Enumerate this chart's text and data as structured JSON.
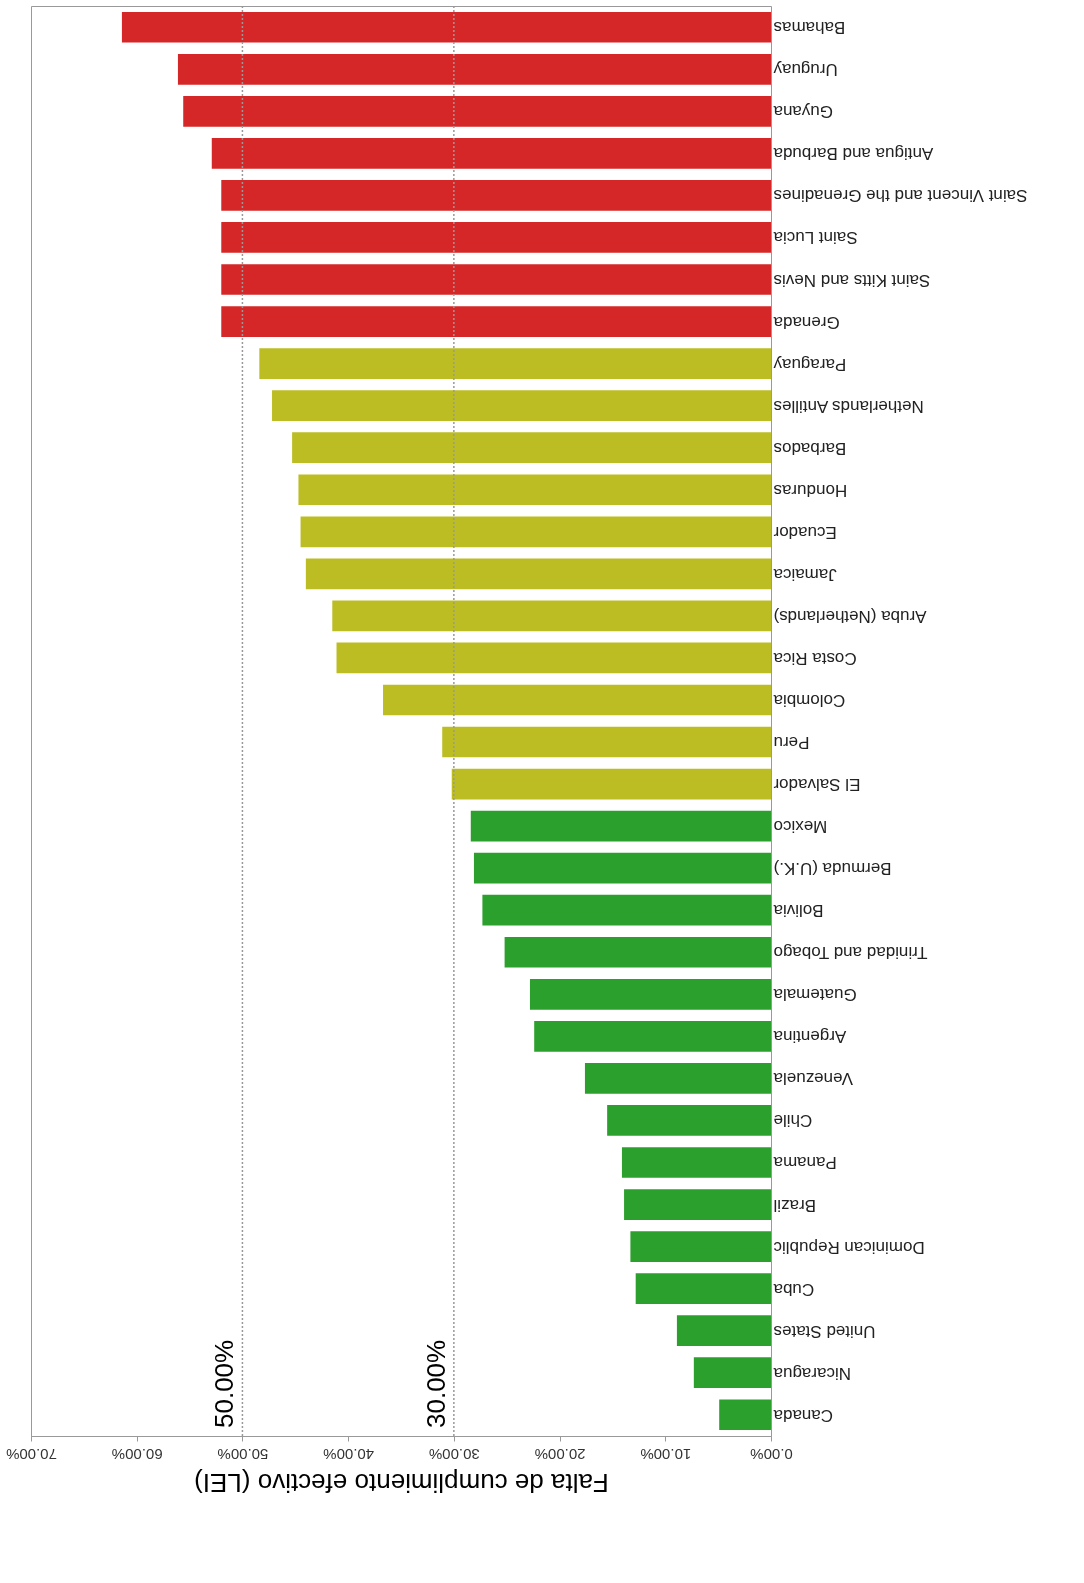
{
  "chart_data": {
    "type": "bar",
    "orientation": "horizontal",
    "xlabel": "Falta de cumplimiento efectivo (LEI)",
    "categories": [
      "Bahamas",
      "Uruguay",
      "Guyana",
      "Antigua and Barbuda",
      "Saint Vincent and the Grenadines",
      "Saint Lucia",
      "Saint Kitts and Nevis",
      "Grenada",
      "Paraguay",
      "Netherlands Antilles",
      "Barbados",
      "Honduras",
      "Ecuador",
      "Jamaica",
      "Aruba (Netherlands)",
      "Costa Rica",
      "Colombia",
      "Peru",
      "El Salvador",
      "Mexico",
      "Bermuda (U.K.)",
      "Bolivia",
      "Trinidad and Tobago",
      "Guatemala",
      "Argentina",
      "Venezuela",
      "Chile",
      "Panama",
      "Brazil",
      "Dominican Republic",
      "Cuba",
      "United States",
      "Nicaragua",
      "Canada"
    ],
    "values": [
      61.4,
      56.1,
      55.6,
      52.9,
      52.0,
      52.0,
      52.0,
      52.0,
      48.4,
      47.2,
      45.3,
      44.7,
      44.5,
      44.0,
      41.5,
      41.1,
      36.7,
      31.1,
      30.2,
      28.4,
      28.1,
      27.3,
      25.2,
      22.8,
      22.4,
      17.6,
      15.5,
      14.1,
      13.9,
      13.3,
      12.8,
      8.9,
      7.3,
      4.9
    ],
    "colors": [
      "#d62728",
      "#d62728",
      "#d62728",
      "#d62728",
      "#d62728",
      "#d62728",
      "#d62728",
      "#d62728",
      "#bcbd22",
      "#bcbd22",
      "#bcbd22",
      "#bcbd22",
      "#bcbd22",
      "#bcbd22",
      "#bcbd22",
      "#bcbd22",
      "#bcbd22",
      "#bcbd22",
      "#bcbd22",
      "#2ca02c",
      "#2ca02c",
      "#2ca02c",
      "#2ca02c",
      "#2ca02c",
      "#2ca02c",
      "#2ca02c",
      "#2ca02c",
      "#2ca02c",
      "#2ca02c",
      "#2ca02c",
      "#2ca02c",
      "#2ca02c",
      "#2ca02c",
      "#2ca02c"
    ],
    "xlim": [
      70,
      0
    ],
    "xticks": [
      {
        "value": 70,
        "label": "70.00%"
      },
      {
        "value": 60,
        "label": "60.00%"
      },
      {
        "value": 50,
        "label": "50.00%"
      },
      {
        "value": 40,
        "label": "40.00%"
      },
      {
        "value": 30,
        "label": "30.00%"
      },
      {
        "value": 20,
        "label": "20.00%"
      },
      {
        "value": 10,
        "label": "10.00%"
      },
      {
        "value": 0,
        "label": "0.00%"
      }
    ],
    "ref_lines": [
      {
        "axis": "x",
        "value": 50,
        "label": "50.00%",
        "color": "#999999",
        "line_style": "dotted"
      },
      {
        "axis": "x",
        "value": 30,
        "label": "30.00%",
        "color": "#999999",
        "line_style": "dotted"
      }
    ],
    "grid": false
  }
}
